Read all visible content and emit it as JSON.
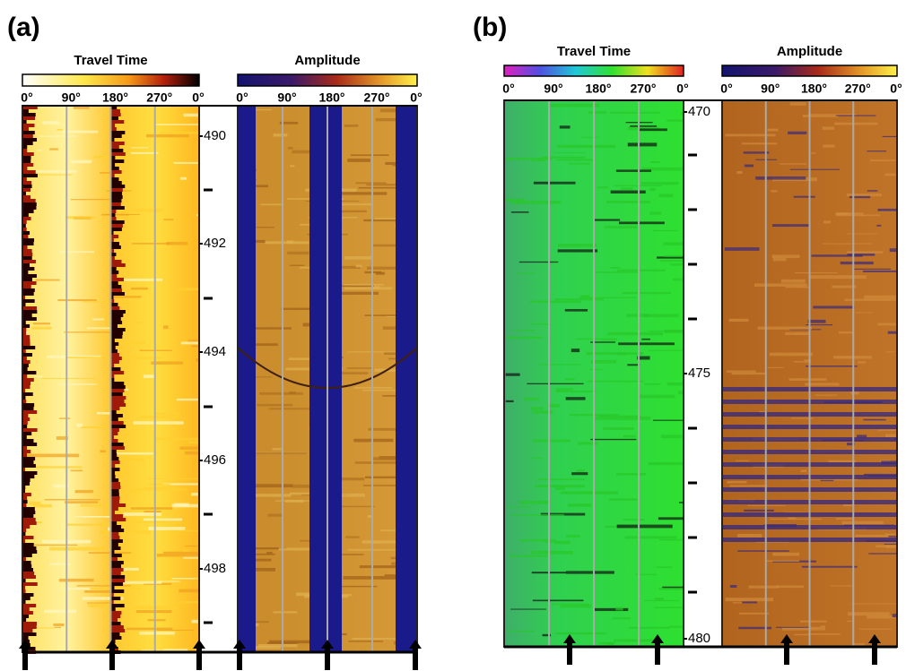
{
  "panels": [
    {
      "label": "(a)",
      "images": [
        {
          "title": "Travel Time",
          "axis_labels": [
            "0°",
            "90°",
            "180°",
            "270°",
            "0°"
          ]
        },
        {
          "title": "Amplitude",
          "axis_labels": [
            "0°",
            "90°",
            "180°",
            "270°",
            "0°"
          ]
        }
      ],
      "depth_labels": [
        490,
        492,
        494,
        496,
        498
      ]
    },
    {
      "label": "(b)",
      "images": [
        {
          "title": "Travel Time",
          "axis_labels": [
            "0°",
            "90°",
            "180°",
            "270°",
            "0°"
          ]
        },
        {
          "title": "Amplitude",
          "axis_labels": [
            "0°",
            "90°",
            "180°",
            "270°",
            "0°"
          ]
        }
      ],
      "depth_labels": [
        470,
        475,
        480
      ]
    }
  ]
}
